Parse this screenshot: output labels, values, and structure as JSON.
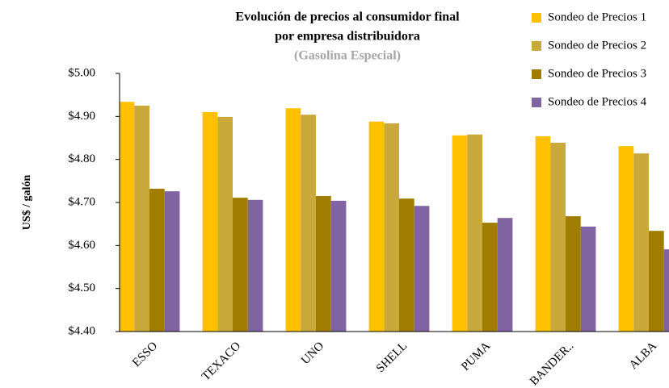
{
  "chart_data": {
    "type": "bar",
    "title": "Evolución de precios al consumidor final",
    "title_line2": "por empresa distribuidora",
    "subtitle": "(Gasolina Especial)",
    "ylabel": "US$ / galón",
    "categories": [
      "ESSO",
      "TEXACO",
      "UNO",
      "SHELL",
      "PUMA",
      "BANDER..",
      "ALBA"
    ],
    "series": [
      {
        "name": "Sondeo de Precios 1",
        "color": "#ffc000",
        "values": [
          4.934,
          4.91,
          4.919,
          4.888,
          4.856,
          4.854,
          4.831
        ]
      },
      {
        "name": "Sondeo de Precios 2",
        "color": "#c9a93a",
        "values": [
          4.925,
          4.899,
          4.904,
          4.884,
          4.858,
          4.839,
          4.814
        ]
      },
      {
        "name": "Sondeo de Precios 3",
        "color": "#a07d00",
        "values": [
          4.732,
          4.711,
          4.715,
          4.709,
          4.653,
          4.668,
          4.634
        ]
      },
      {
        "name": "Sondeo de Precios 4",
        "color": "#8064a2",
        "values": [
          4.726,
          4.706,
          4.704,
          4.692,
          4.664,
          4.644,
          4.591
        ]
      }
    ],
    "ylim": [
      4.4,
      5.0
    ],
    "yticks": [
      {
        "value": 4.4,
        "label": "$4.40"
      },
      {
        "value": 4.5,
        "label": "$4.50"
      },
      {
        "value": 4.6,
        "label": "$4.60"
      },
      {
        "value": 4.7,
        "label": "$4.70"
      },
      {
        "value": 4.8,
        "label": "$4.80"
      },
      {
        "value": 4.9,
        "label": "$4.90"
      },
      {
        "value": 5.0,
        "label": "$5.00"
      }
    ],
    "grid": false,
    "legend": "top-right"
  }
}
